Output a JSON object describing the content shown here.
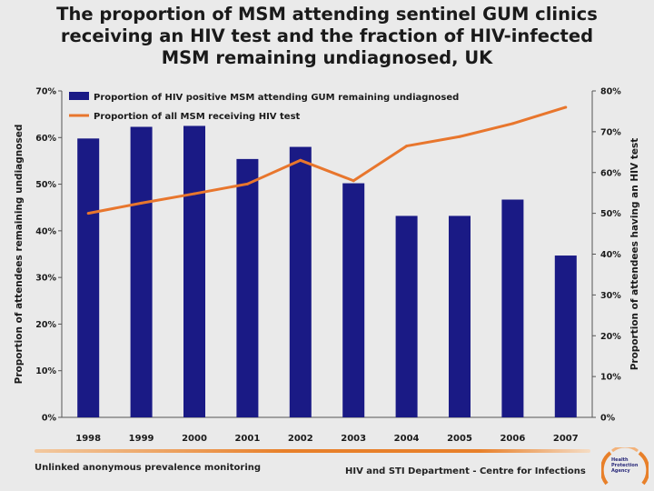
{
  "title": "The proportion of MSM attending sentinel GUM clinics receiving an HIV test and the fraction of HIV-infected MSM remaining undiagnosed, UK",
  "footer": {
    "left": "Unlinked anonymous prevalence monitoring",
    "right": "HIV and STI Department  - Centre for Infections",
    "logo_text": "Health Protection Agency"
  },
  "colors": {
    "bar": "#1a1a85",
    "line": "#e8762d",
    "footer_accent": "#e8802a"
  },
  "chart_data": {
    "type": "bar+line",
    "categories": [
      "1998",
      "1999",
      "2000",
      "2001",
      "2002",
      "2003",
      "2004",
      "2005",
      "2006",
      "2007"
    ],
    "series": [
      {
        "name": "Proportion of HIV positive MSM attending GUM remaining undiagnosed",
        "type": "bar",
        "axis": "left",
        "values": [
          59.8,
          62.3,
          62.5,
          55.4,
          58.0,
          50.2,
          43.2,
          43.2,
          46.7,
          34.7
        ]
      },
      {
        "name": "Proportion of all MSM receiving HIV test",
        "type": "line",
        "axis": "right",
        "values": [
          50.0,
          52.5,
          54.8,
          57.2,
          63.0,
          58.0,
          66.5,
          68.8,
          72.0,
          76.0
        ]
      }
    ],
    "y_left": {
      "label": "Proportion of attendees remaining undiagnosed",
      "ylim": [
        0,
        70
      ],
      "ticks": [
        "0%",
        "10%",
        "20%",
        "30%",
        "40%",
        "50%",
        "60%",
        "70%"
      ]
    },
    "y_right": {
      "label": "Proportion of attendees having an HIV test",
      "ylim": [
        0,
        80
      ],
      "ticks": [
        "0%",
        "10%",
        "20%",
        "30%",
        "40%",
        "50%",
        "60%",
        "70%",
        "80%"
      ]
    },
    "legend_position": "top-left",
    "grid": false
  }
}
